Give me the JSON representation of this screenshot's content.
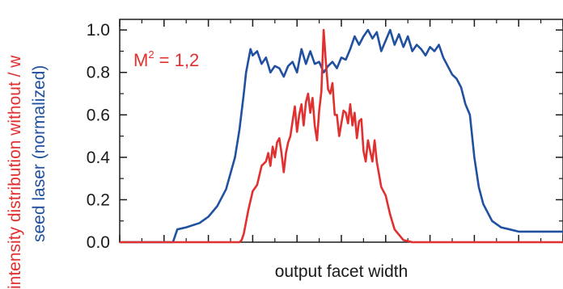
{
  "chart_data": {
    "type": "line",
    "xlabel": "output facet width",
    "ylabel_line1": "intensity distribution without / w",
    "ylabel_line2": "seed laser (normalized)",
    "ylim": [
      0,
      1.05
    ],
    "xlim": [
      0,
      1
    ],
    "y_ticks": [
      0.0,
      0.2,
      0.4,
      0.6,
      0.8,
      1.0
    ],
    "y_tick_labels": [
      "0.0",
      "0.2",
      "0.4",
      "0.6",
      "0.8",
      "1.0"
    ],
    "x_major_ticks": [
      0,
      0.1,
      0.2,
      0.3,
      0.4,
      0.5,
      0.6,
      0.7,
      0.8,
      0.9,
      1.0
    ],
    "grid": false,
    "annotation": {
      "base": "M",
      "sup": "2",
      "rest": " = 1,2"
    },
    "series": [
      {
        "color": "#2050a0",
        "x": [
          0.0,
          0.12,
          0.13,
          0.15,
          0.18,
          0.2,
          0.22,
          0.24,
          0.26,
          0.27,
          0.28,
          0.285,
          0.295,
          0.3,
          0.31,
          0.32,
          0.33,
          0.34,
          0.35,
          0.36,
          0.37,
          0.38,
          0.39,
          0.4,
          0.41,
          0.42,
          0.43,
          0.44,
          0.45,
          0.46,
          0.47,
          0.48,
          0.49,
          0.5,
          0.51,
          0.52,
          0.53,
          0.54,
          0.55,
          0.56,
          0.57,
          0.58,
          0.59,
          0.6,
          0.61,
          0.62,
          0.63,
          0.64,
          0.65,
          0.66,
          0.67,
          0.68,
          0.69,
          0.7,
          0.71,
          0.72,
          0.73,
          0.74,
          0.75,
          0.76,
          0.77,
          0.78,
          0.79,
          0.8,
          0.81,
          0.82,
          0.84,
          0.86,
          0.88,
          0.9,
          1.0
        ],
        "y": [
          0.0,
          0.0,
          0.06,
          0.07,
          0.09,
          0.12,
          0.17,
          0.25,
          0.4,
          0.53,
          0.7,
          0.8,
          0.91,
          0.88,
          0.9,
          0.84,
          0.87,
          0.8,
          0.83,
          0.82,
          0.78,
          0.83,
          0.85,
          0.8,
          0.91,
          0.84,
          0.9,
          0.84,
          0.85,
          0.8,
          0.83,
          0.85,
          0.82,
          0.87,
          0.86,
          0.91,
          0.97,
          0.93,
          0.97,
          1.0,
          0.96,
          0.99,
          0.9,
          0.95,
          1.0,
          0.93,
          0.98,
          0.92,
          0.97,
          0.9,
          0.93,
          0.91,
          0.88,
          0.92,
          0.9,
          0.93,
          0.87,
          0.83,
          0.79,
          0.77,
          0.73,
          0.65,
          0.6,
          0.4,
          0.26,
          0.18,
          0.1,
          0.07,
          0.06,
          0.05,
          0.05
        ]
      },
      {
        "color": "#e03030",
        "x": [
          0.0,
          0.27,
          0.275,
          0.28,
          0.29,
          0.3,
          0.31,
          0.32,
          0.33,
          0.335,
          0.34,
          0.345,
          0.35,
          0.355,
          0.36,
          0.365,
          0.37,
          0.375,
          0.38,
          0.385,
          0.39,
          0.395,
          0.4,
          0.405,
          0.41,
          0.415,
          0.42,
          0.425,
          0.43,
          0.435,
          0.44,
          0.445,
          0.45,
          0.455,
          0.46,
          0.465,
          0.47,
          0.475,
          0.48,
          0.485,
          0.49,
          0.495,
          0.5,
          0.505,
          0.51,
          0.515,
          0.52,
          0.525,
          0.53,
          0.535,
          0.54,
          0.545,
          0.55,
          0.555,
          0.56,
          0.565,
          0.57,
          0.575,
          0.58,
          0.59,
          0.6,
          0.61,
          0.62,
          0.64,
          0.66,
          1.0
        ],
        "y": [
          0.0,
          0.0,
          0.01,
          0.04,
          0.15,
          0.24,
          0.27,
          0.36,
          0.38,
          0.42,
          0.36,
          0.45,
          0.4,
          0.47,
          0.49,
          0.42,
          0.33,
          0.42,
          0.47,
          0.5,
          0.57,
          0.64,
          0.52,
          0.6,
          0.65,
          0.55,
          0.66,
          0.7,
          0.61,
          0.68,
          0.55,
          0.48,
          0.62,
          0.71,
          1.0,
          0.85,
          0.72,
          0.7,
          0.75,
          0.6,
          0.6,
          0.5,
          0.56,
          0.62,
          0.61,
          0.56,
          0.65,
          0.55,
          0.61,
          0.49,
          0.57,
          0.58,
          0.43,
          0.38,
          0.48,
          0.43,
          0.38,
          0.48,
          0.38,
          0.26,
          0.22,
          0.13,
          0.06,
          0.01,
          0.0,
          0.0
        ]
      }
    ]
  }
}
